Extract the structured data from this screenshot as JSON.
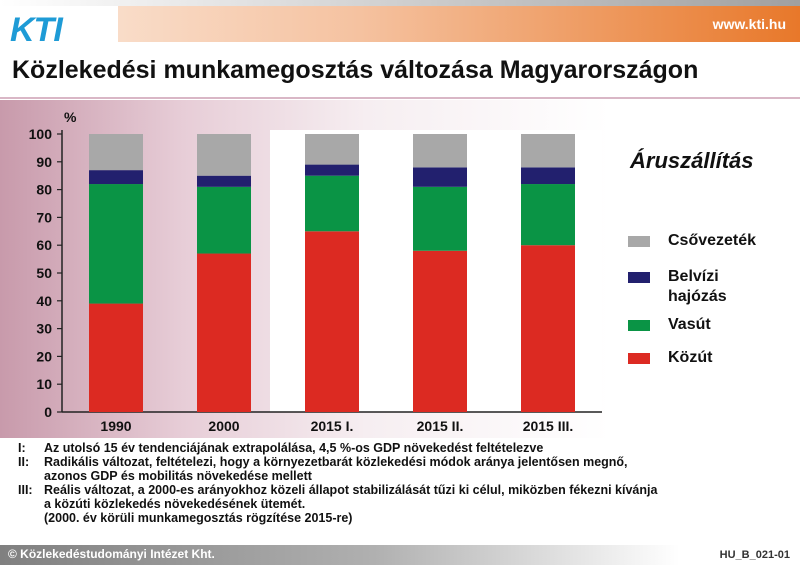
{
  "header": {
    "logo_text": "KTI",
    "site_url": "www.kti.hu"
  },
  "page_title": "Közlekedési munkamegosztás változása Magyarországon",
  "chart_data": {
    "type": "bar",
    "stacked": true,
    "title": "Áruszállítás",
    "ylabel": "%",
    "xlabel": "",
    "ylim": [
      0,
      100
    ],
    "yticks": [
      0,
      10,
      20,
      30,
      40,
      50,
      60,
      70,
      80,
      90,
      100
    ],
    "grid": false,
    "legend_placement": "right",
    "categories": [
      "1990",
      "2000",
      "2015 I.",
      "2015 II.",
      "2015 III."
    ],
    "series": [
      {
        "name": "Közút",
        "color": "#dc2a22",
        "values": [
          39,
          57,
          65,
          58,
          60
        ]
      },
      {
        "name": "Vasút",
        "color": "#0a9445",
        "values": [
          43,
          24,
          20,
          23,
          22
        ]
      },
      {
        "name": "Belvízi hajózás",
        "color": "#22206e",
        "values": [
          5,
          4,
          4,
          7,
          6
        ]
      },
      {
        "name": "Csővezeték",
        "color": "#a8a8a8",
        "values": [
          13,
          15,
          11,
          12,
          12
        ]
      }
    ],
    "legend": [
      {
        "label": "Csővezeték",
        "color": "#a8a8a8"
      },
      {
        "label": "Belvízi\nhajózás",
        "color": "#22206e"
      },
      {
        "label": "Vasút",
        "color": "#0a9445"
      },
      {
        "label": "Közút",
        "color": "#dc2a22"
      }
    ]
  },
  "notes": [
    {
      "marker": "I:",
      "text": "Az utolsó 15 év tendenciájának extrapolálása, 4,5 %-os GDP növekedést feltételezve"
    },
    {
      "marker": "II:",
      "text": "Radikális változat, feltételezi, hogy a környezetbarát közlekedési módok aránya jelentősen megnő,\nazonos GDP és mobilitás növekedése mellett"
    },
    {
      "marker": "III:",
      "text": "Reális változat, a 2000-es arányokhoz közeli állapot stabilizálását tűzi ki célul, miközben fékezni kívánja\na közúti közlekedés növekedésének ütemét.\n(2000. év körüli munkamegosztás rögzítése 2015-re)"
    }
  ],
  "footer": {
    "copyright": "© Közlekedéstudományi Intézet Kht.",
    "code": "HU_B_021-01"
  }
}
